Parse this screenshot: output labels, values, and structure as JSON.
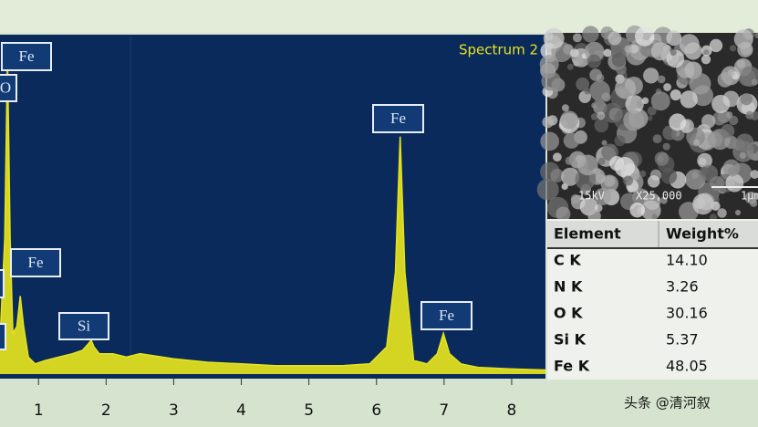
{
  "chart_data": {
    "type": "area",
    "title": "Spectrum 2",
    "x": [
      0.43,
      0.5,
      0.54,
      0.58,
      0.62,
      0.68,
      0.73,
      0.78,
      0.85,
      0.95,
      1.1,
      1.3,
      1.5,
      1.65,
      1.74,
      1.78,
      1.82,
      1.9,
      2.1,
      2.3,
      2.5,
      3.0,
      3.5,
      4.0,
      4.5,
      5.0,
      5.5,
      5.9,
      6.15,
      6.28,
      6.35,
      6.42,
      6.55,
      6.75,
      6.9,
      6.99,
      7.08,
      7.25,
      7.5,
      8.0,
      8.5
    ],
    "values": [
      10,
      40,
      94,
      40,
      12,
      14,
      23,
      14,
      5,
      3,
      4,
      5,
      6,
      7,
      9,
      10,
      8,
      6,
      6,
      5,
      6,
      4.5,
      3.5,
      3,
      2.5,
      2.5,
      2.5,
      3,
      8,
      30,
      70,
      30,
      4,
      3,
      6,
      12,
      6,
      3,
      2,
      1.5,
      1.2
    ],
    "color": "#e6e31e",
    "xlim": [
      0.43,
      8.5
    ],
    "ylim": [
      0,
      100
    ],
    "xticks": [
      1,
      2,
      3,
      4,
      5,
      6,
      7,
      8
    ],
    "annotations": [
      "Fe",
      "O",
      "Fe",
      "Si",
      "Fe",
      "Fe"
    ]
  },
  "table": {
    "header": [
      "Element",
      "Weight%"
    ],
    "rows": [
      [
        "C K",
        "14.10"
      ],
      [
        "N K",
        "3.26"
      ],
      [
        "O K",
        "30.16"
      ],
      [
        "Si K",
        "5.37"
      ],
      [
        "Fe K",
        "48.05"
      ]
    ]
  },
  "image_caption": [
    "15kV",
    "X25,000",
    "1μm"
  ],
  "watermark": "头条 @清河叙"
}
